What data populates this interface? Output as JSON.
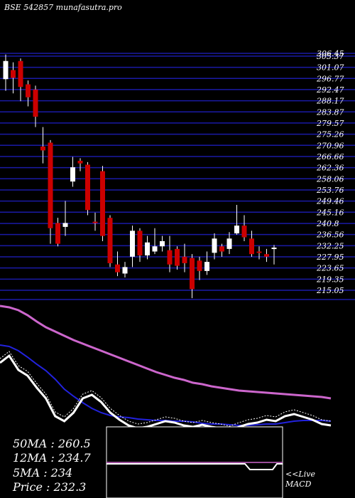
{
  "header": {
    "title": "BSE 542857 munafasutra.pro"
  },
  "colors": {
    "background": "#000000",
    "grid": "#1a1aa6",
    "bull": "#ffffff",
    "bear": "#cc0000",
    "ma50": "#cc66cc",
    "ma12": "#2222dd",
    "ma5": "#ffffff",
    "text": "#ffffff"
  },
  "chart_data": [
    {
      "type": "candlestick",
      "title": "BSE 542857 munafasutra.pro",
      "ylim": [
        215.05,
        306.45
      ],
      "y_ticks": [
        "306.45",
        "305.37",
        "301.07",
        "296.77",
        "292.47",
        "288.17",
        "283.87",
        "279.57",
        "275.26",
        "270.96",
        "266.66",
        "262.36",
        "258.06",
        "253.76",
        "249.46",
        "245.16",
        "240.8",
        "236.56",
        "232.25",
        "227.95",
        "223.65",
        "219.35",
        "215.05"
      ],
      "candles": [
        {
          "open": 296.5,
          "close": 303.5,
          "high": 306.0,
          "low": 292.0
        },
        {
          "open": 300.0,
          "close": 297.0,
          "high": 303.0,
          "low": 291.0
        },
        {
          "open": 303.5,
          "close": 293.5,
          "high": 304.5,
          "low": 288.0
        },
        {
          "open": 294.5,
          "close": 289.5,
          "high": 296.0,
          "low": 286.0
        },
        {
          "open": 292.5,
          "close": 282.0,
          "high": 294.0,
          "low": 278.0
        },
        {
          "open": 270.5,
          "close": 269.0,
          "high": 278.0,
          "low": 264.0
        },
        {
          "open": 272.0,
          "close": 239.0,
          "high": 273.0,
          "low": 233.0
        },
        {
          "open": 241.0,
          "close": 233.0,
          "high": 243.0,
          "low": 232.0
        },
        {
          "open": 239.5,
          "close": 241.0,
          "high": 249.5,
          "low": 236.0
        },
        {
          "open": 257.0,
          "close": 262.5,
          "high": 266.5,
          "low": 255.0
        },
        {
          "open": 265.0,
          "close": 264.0,
          "high": 266.0,
          "low": 261.0
        },
        {
          "open": 263.5,
          "close": 246.0,
          "high": 264.5,
          "low": 244.0
        },
        {
          "open": 241.5,
          "close": 241.0,
          "high": 245.0,
          "low": 238.0
        },
        {
          "open": 261.0,
          "close": 236.0,
          "high": 263.0,
          "low": 234.0
        },
        {
          "open": 243.0,
          "close": 225.5,
          "high": 244.0,
          "low": 224.0
        },
        {
          "open": 225.0,
          "close": 222.0,
          "high": 230.0,
          "low": 220.5
        },
        {
          "open": 221.5,
          "close": 224.0,
          "high": 226.0,
          "low": 220.0
        },
        {
          "open": 228.0,
          "close": 238.0,
          "high": 240.0,
          "low": 224.0
        },
        {
          "open": 238.0,
          "close": 228.5,
          "high": 239.0,
          "low": 226.0
        },
        {
          "open": 228.5,
          "close": 233.5,
          "high": 236.0,
          "low": 227.0
        },
        {
          "open": 230.0,
          "close": 232.0,
          "high": 239.0,
          "low": 229.0
        },
        {
          "open": 232.0,
          "close": 234.0,
          "high": 236.0,
          "low": 230.0
        },
        {
          "open": 230.5,
          "close": 225.0,
          "high": 236.0,
          "low": 222.0
        },
        {
          "open": 231.0,
          "close": 224.5,
          "high": 232.0,
          "low": 223.0
        },
        {
          "open": 228.0,
          "close": 225.5,
          "high": 233.0,
          "low": 222.0
        },
        {
          "open": 227.5,
          "close": 215.5,
          "high": 229.0,
          "low": 212.0
        },
        {
          "open": 226.5,
          "close": 222.5,
          "high": 228.0,
          "low": 219.0
        },
        {
          "open": 222.5,
          "close": 226.0,
          "high": 230.0,
          "low": 221.0
        },
        {
          "open": 229.5,
          "close": 235.0,
          "high": 237.0,
          "low": 227.0
        },
        {
          "open": 232.0,
          "close": 230.0,
          "high": 233.0,
          "low": 228.0
        },
        {
          "open": 231.0,
          "close": 235.0,
          "high": 237.5,
          "low": 229.0
        },
        {
          "open": 237.0,
          "close": 240.0,
          "high": 248.0,
          "low": 236.5
        },
        {
          "open": 240.0,
          "close": 235.5,
          "high": 244.0,
          "low": 234.0
        },
        {
          "open": 235.0,
          "close": 229.0,
          "high": 238.0,
          "low": 228.0
        },
        {
          "open": 230.0,
          "close": 229.5,
          "high": 232.0,
          "low": 227.0
        },
        {
          "open": 229.0,
          "close": 228.0,
          "high": 231.0,
          "low": 226.0
        },
        {
          "open": 231.0,
          "close": 231.5,
          "high": 232.5,
          "low": 225.0
        }
      ]
    },
    {
      "type": "line",
      "series": [
        {
          "values": [
            430,
            432,
            436,
            443,
            452,
            460,
            466,
            472,
            478,
            483,
            488,
            493,
            498,
            503,
            508,
            513,
            518,
            523,
            527,
            531,
            534,
            538,
            540,
            543,
            545,
            547,
            549,
            550,
            551,
            552,
            553,
            554,
            555,
            556,
            557,
            558,
            560
          ]
        },
        {
          "values": [
            485,
            487,
            493,
            502,
            512,
            521,
            533,
            547,
            557,
            566,
            574,
            580,
            584,
            586,
            587,
            589,
            590,
            591,
            591,
            592,
            592,
            593,
            595,
            596,
            596,
            597,
            598,
            598,
            597,
            596,
            596,
            594,
            592,
            591,
            591,
            591,
            592
          ]
        },
        {
          "values": [
            510,
            500,
            520,
            528,
            545,
            560,
            585,
            592,
            580,
            560,
            555,
            565,
            580,
            590,
            598,
            602,
            600,
            596,
            592,
            594,
            598,
            600,
            597,
            600,
            602,
            605,
            600,
            596,
            594,
            590,
            592,
            585,
            582,
            586,
            590,
            596,
            598
          ]
        }
      ]
    }
  ],
  "legend": {
    "ma50": "50MA : 260.5",
    "ma12": "12MA : 234.7",
    "ma5": "5MA : 234",
    "price": "Price  : 232.3"
  },
  "macd": {
    "label_live": "<<Live",
    "label_macd": "MACD"
  }
}
